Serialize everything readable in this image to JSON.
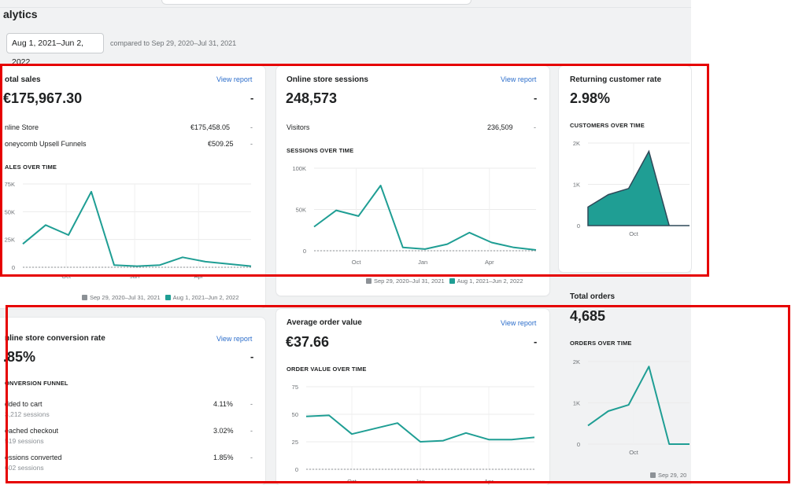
{
  "header": {
    "title": "alytics",
    "date_range": "Aug 1, 2021–Jun 2, 2022",
    "compare_text": "compared to Sep 29, 2020–Jul 31, 2021"
  },
  "colors": {
    "accent": "#1f9e94",
    "link": "#2c6ecb",
    "comparison": "#8c9196",
    "highlight": "#e60000"
  },
  "view_report": "View report",
  "dash": "-",
  "total_sales": {
    "title": "otal sales",
    "value": "€175,967.30",
    "rows": [
      {
        "label": "nline Store",
        "value": "€175,458.05"
      },
      {
        "label": "oneycomb Upsell Funnels",
        "value": "€509.25"
      }
    ],
    "section": "ALES OVER TIME",
    "legend": [
      "Sep 29, 2020–Jul 31, 2021",
      "Aug 1, 2021–Jun 2, 2022"
    ]
  },
  "sessions": {
    "title": "Online store sessions",
    "value": "248,573",
    "rows": [
      {
        "label": "Visitors",
        "value": "236,509"
      }
    ],
    "section": "SESSIONS OVER TIME",
    "legend": [
      "Sep 29, 2020–Jul 31, 2021",
      "Aug 1, 2021–Jun 2, 2022"
    ]
  },
  "returning": {
    "title": "Returning customer rate",
    "value": "2.98%",
    "section": "CUSTOMERS OVER TIME"
  },
  "conversion": {
    "title": "nline store conversion rate",
    "value": ".85%",
    "section": "ONVERSION FUNNEL",
    "rows": [
      {
        "label": "dded to cart",
        "sub": "3,212 sessions",
        "value": "4.11%"
      },
      {
        "label": "eached checkout",
        "sub": "519 sessions",
        "value": "3.02%"
      },
      {
        "label": "essions converted",
        "sub": "602 sessions",
        "value": "1.85%"
      }
    ]
  },
  "aov": {
    "title": "Average order value",
    "value": "€37.66",
    "section": "ORDER VALUE OVER TIME"
  },
  "orders": {
    "title": "Total orders",
    "value": "4,685",
    "section": "ORDERS OVER TIME",
    "legend": "Sep 29, 20"
  },
  "chart_data": [
    {
      "id": "sales",
      "type": "line",
      "x_ticks": [
        "Oct",
        "Jan",
        "Apr"
      ],
      "y_ticks": [
        "0",
        "25K",
        "50K",
        "75K"
      ],
      "ylim": [
        0,
        75000
      ],
      "series": [
        {
          "name": "Aug 1, 2021–Jun 2, 2022",
          "values": [
            21000,
            38000,
            29000,
            68000,
            2000,
            1000,
            2000,
            9000,
            5000,
            3000,
            1000
          ]
        },
        {
          "name": "Sep 29, 2020–Jul 31, 2021",
          "values": [
            0,
            0,
            0,
            0,
            0,
            0,
            0,
            0,
            0,
            0,
            0
          ]
        }
      ]
    },
    {
      "id": "sessions",
      "type": "line",
      "x_ticks": [
        "Oct",
        "Jan",
        "Apr"
      ],
      "y_ticks": [
        "0",
        "50K",
        "100K"
      ],
      "ylim": [
        0,
        100000
      ],
      "series": [
        {
          "name": "Aug 1, 2021–Jun 2, 2022",
          "values": [
            29000,
            49000,
            42000,
            79000,
            4000,
            2000,
            8000,
            22000,
            10000,
            4000,
            1000
          ]
        },
        {
          "name": "Sep 29, 2020–Jul 31, 2021",
          "values": [
            0,
            0,
            0,
            0,
            0,
            0,
            0,
            0,
            0,
            0,
            0
          ]
        }
      ]
    },
    {
      "id": "customers",
      "type": "area",
      "x_ticks": [
        "Oct"
      ],
      "y_ticks": [
        "0",
        "1K",
        "2K"
      ],
      "ylim": [
        0,
        2000
      ],
      "series": [
        {
          "name": "",
          "values": [
            450,
            750,
            900,
            1800,
            0,
            0
          ]
        }
      ]
    },
    {
      "id": "aov",
      "type": "line",
      "x_ticks": [
        "Oct",
        "Jan",
        "Apr"
      ],
      "y_ticks": [
        "0",
        "25",
        "50",
        "75"
      ],
      "ylim": [
        0,
        75
      ],
      "series": [
        {
          "name": "",
          "values": [
            48,
            49,
            32,
            37,
            42,
            25,
            26,
            33,
            27,
            27,
            29
          ]
        },
        {
          "name": "",
          "values": [
            0,
            0,
            0,
            0,
            0,
            0,
            0,
            0,
            0,
            0,
            0
          ]
        }
      ]
    },
    {
      "id": "orders",
      "type": "line",
      "x_ticks": [
        "Oct"
      ],
      "y_ticks": [
        "0",
        "1K",
        "2K"
      ],
      "ylim": [
        0,
        2000
      ],
      "series": [
        {
          "name": "",
          "values": [
            450,
            800,
            950,
            1880,
            0,
            0
          ]
        }
      ]
    }
  ]
}
